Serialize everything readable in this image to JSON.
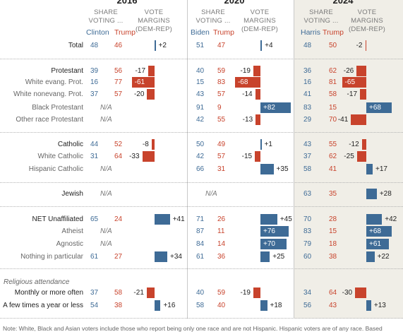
{
  "years": [
    "2016",
    "2020",
    "2024"
  ],
  "headers": {
    "share": [
      "SHARE",
      "VOTING ..."
    ],
    "margin": [
      "VOTE",
      "MARGINS",
      "(DEM-REP)"
    ]
  },
  "candidates": {
    "2016": [
      "Clinton",
      "Trump"
    ],
    "2020": [
      "Biden",
      "Trump"
    ],
    "2024": [
      "Harris",
      "Trump"
    ]
  },
  "na_label": "N/A",
  "section_label": "Religious attendance",
  "note": "Note: White, Black and Asian voters include those who report being only one race and are not Hispanic. Hispanic voters are of any race. Based",
  "colors": {
    "dem": "#3e6b96",
    "rep": "#c8432c",
    "bg2024": "#f0eee7"
  },
  "chart_data": {
    "type": "bar",
    "rows": [
      {
        "label": "Total",
        "style": "main",
        "y2016": [
          48,
          46
        ],
        "m2016": "+2",
        "y2020": [
          51,
          47
        ],
        "m2020": "+4",
        "y2024": [
          48,
          50
        ],
        "m2024": "-2"
      },
      {
        "label": "Protestant",
        "style": "main",
        "y2016": [
          39,
          56
        ],
        "m2016": "-17",
        "y2020": [
          40,
          59
        ],
        "m2020": "-19",
        "y2024": [
          36,
          62
        ],
        "m2024": "-26"
      },
      {
        "label": "White evang. Prot.",
        "style": "sub",
        "y2016": [
          16,
          77
        ],
        "m2016": "-61",
        "y2020": [
          15,
          83
        ],
        "m2020": "-68",
        "y2024": [
          16,
          81
        ],
        "m2024": "-65"
      },
      {
        "label": "White nonevang. Prot.",
        "style": "sub",
        "y2016": [
          37,
          57
        ],
        "m2016": "-20",
        "y2020": [
          43,
          57
        ],
        "m2020": "-14",
        "y2024": [
          41,
          58
        ],
        "m2024": "-17"
      },
      {
        "label": "Black Protestant",
        "style": "sub",
        "y2016": null,
        "m2016": null,
        "y2020": [
          91,
          9
        ],
        "m2020": "+82",
        "y2024": [
          83,
          15
        ],
        "m2024": "+68"
      },
      {
        "label": "Other race Protestant",
        "style": "sub",
        "y2016": null,
        "m2016": null,
        "y2020": [
          42,
          55
        ],
        "m2020": "-13",
        "y2024": [
          29,
          70
        ],
        "m2024": "-41"
      },
      {
        "label": "Catholic",
        "style": "main",
        "y2016": [
          44,
          52
        ],
        "m2016": "-8",
        "y2020": [
          50,
          49
        ],
        "m2020": "+1",
        "y2024": [
          43,
          55
        ],
        "m2024": "-12"
      },
      {
        "label": "White Catholic",
        "style": "sub",
        "y2016": [
          31,
          64
        ],
        "m2016": "-33",
        "y2020": [
          42,
          57
        ],
        "m2020": "-15",
        "y2024": [
          37,
          62
        ],
        "m2024": "-25"
      },
      {
        "label": "Hispanic Catholic",
        "style": "sub",
        "y2016": null,
        "m2016": null,
        "y2020": [
          66,
          31
        ],
        "m2020": "+35",
        "y2024": [
          58,
          41
        ],
        "m2024": "+17"
      },
      {
        "label": "Jewish",
        "style": "main",
        "y2016": null,
        "m2016": null,
        "y2020": null,
        "m2020": null,
        "y2024": [
          63,
          35
        ],
        "m2024": "+28"
      },
      {
        "label": "NET Unaffiliated",
        "style": "main",
        "y2016": [
          65,
          24
        ],
        "m2016": "+41",
        "y2020": [
          71,
          26
        ],
        "m2020": "+45",
        "y2024": [
          70,
          28
        ],
        "m2024": "+42"
      },
      {
        "label": "Atheist",
        "style": "sub",
        "y2016": null,
        "m2016": null,
        "y2020": [
          87,
          11
        ],
        "m2020": "+76",
        "y2024": [
          83,
          15
        ],
        "m2024": "+68"
      },
      {
        "label": "Agnostic",
        "style": "sub",
        "y2016": null,
        "m2016": null,
        "y2020": [
          84,
          14
        ],
        "m2020": "+70",
        "y2024": [
          79,
          18
        ],
        "m2024": "+61"
      },
      {
        "label": "Nothing in particular",
        "style": "sub",
        "y2016": [
          61,
          27
        ],
        "m2016": "+34",
        "y2020": [
          61,
          36
        ],
        "m2020": "+25",
        "y2024": [
          60,
          38
        ],
        "m2024": "+22"
      },
      {
        "label": "Monthly or more often",
        "style": "main",
        "y2016": [
          37,
          58
        ],
        "m2016": "-21",
        "y2020": [
          40,
          59
        ],
        "m2020": "-19",
        "y2024": [
          34,
          64
        ],
        "m2024": "-30"
      },
      {
        "label": "A few times a year or less",
        "style": "main",
        "y2016": [
          54,
          38
        ],
        "m2016": "+16",
        "y2020": [
          58,
          40
        ],
        "m2020": "+18",
        "y2024": [
          56,
          43
        ],
        "m2024": "+13"
      }
    ]
  }
}
